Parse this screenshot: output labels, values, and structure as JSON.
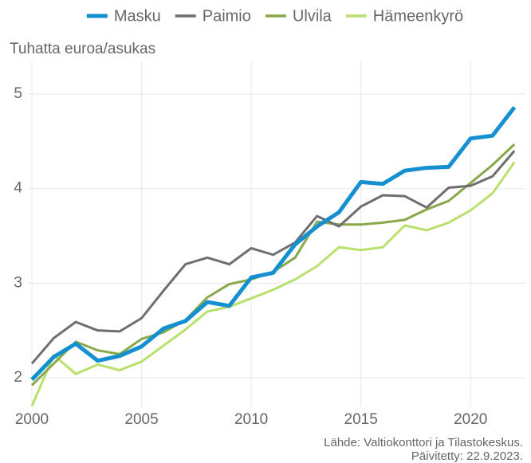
{
  "chart_data": {
    "type": "line",
    "y_axis_title": "Tuhatta euroa/asukas",
    "caption": [
      "Lähde: Valtiokonttori ja Tilastokeskus.",
      "Päivitetty: 22.9.2023."
    ],
    "x": [
      2000,
      2001,
      2002,
      2003,
      2004,
      2005,
      2006,
      2007,
      2008,
      2009,
      2010,
      2011,
      2012,
      2013,
      2014,
      2015,
      2016,
      2017,
      2018,
      2019,
      2020,
      2021,
      2022
    ],
    "xlim": [
      1999.8,
      2022.5
    ],
    "xticks": [
      2000,
      2005,
      2010,
      2015,
      2020
    ],
    "ylim": [
      1.7,
      5.35
    ],
    "yticks": [
      2,
      3,
      4,
      5
    ],
    "grid": true,
    "legend": "top",
    "series": [
      {
        "name": "Masku",
        "color": "#1490d0",
        "values": [
          1.98,
          2.22,
          2.36,
          2.18,
          2.23,
          2.33,
          2.52,
          2.6,
          2.8,
          2.76,
          3.06,
          3.11,
          3.41,
          3.6,
          3.75,
          4.07,
          4.05,
          4.19,
          4.22,
          4.23,
          4.53,
          4.56,
          4.86
        ]
      },
      {
        "name": "Paimio",
        "color": "#6e6e6e",
        "values": [
          2.15,
          2.42,
          2.59,
          2.5,
          2.49,
          2.63,
          2.92,
          3.2,
          3.27,
          3.2,
          3.37,
          3.3,
          3.43,
          3.71,
          3.6,
          3.81,
          3.93,
          3.92,
          3.8,
          4.01,
          4.03,
          4.13,
          4.4
        ]
      },
      {
        "name": "Ulvila",
        "color": "#88a84a",
        "values": [
          1.92,
          2.15,
          2.38,
          2.29,
          2.25,
          2.41,
          2.48,
          2.61,
          2.85,
          2.99,
          3.04,
          3.12,
          3.27,
          3.65,
          3.62,
          3.62,
          3.64,
          3.67,
          3.78,
          3.87,
          4.06,
          4.25,
          4.47
        ]
      },
      {
        "name": "Hämeenkyrö",
        "color": "#b9e06c",
        "values": [
          1.7,
          2.24,
          2.04,
          2.14,
          2.08,
          2.17,
          2.34,
          2.51,
          2.7,
          2.75,
          2.84,
          2.93,
          3.04,
          3.18,
          3.38,
          3.35,
          3.38,
          3.61,
          3.56,
          3.64,
          3.77,
          3.95,
          4.28
        ]
      }
    ]
  }
}
